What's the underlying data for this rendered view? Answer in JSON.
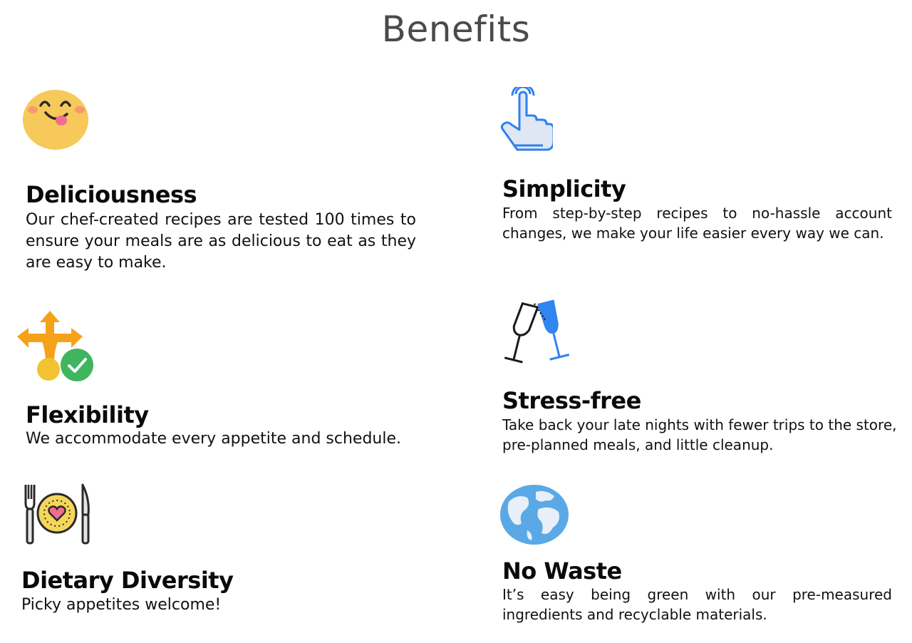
{
  "page": {
    "title": "Benefits"
  },
  "benefits": [
    {
      "title": "Deliciousness",
      "description": "Our chef-created recipes are tested 100 times to ensure your meals are as delicious to eat as they are easy to make.",
      "icon": "smiling-face-icon"
    },
    {
      "title": "Simplicity",
      "description": "From step-by-step recipes to no-hassle account changes, we make your life easier every way we can.",
      "icon": "tap-hand-icon"
    },
    {
      "title": "Flexibility",
      "description": "We accommodate every appetite and schedule.",
      "icon": "branching-arrows-check-icon"
    },
    {
      "title": "Stress-free",
      "description": "Take back your late nights with fewer trips to the store, pre-planned meals, and little cleanup.",
      "icon": "wine-glasses-icon"
    },
    {
      "title": "Dietary Diversity",
      "description": "Picky appetites welcome!",
      "icon": "plate-cutlery-icon"
    },
    {
      "title": "No Waste",
      "description": "It’s easy being green with our pre-measured ingredients and recyclable materials.",
      "icon": "globe-icon"
    }
  ],
  "colors": {
    "title_gray": "#4a4a4a",
    "emoji_yellow": "#f7c85a",
    "hand_blue": "#2f80ed",
    "arrow_orange": "#f5a21b",
    "check_green": "#3fb55e",
    "globe_blue": "#5aa9e6",
    "plate_yellow": "#f6d65a",
    "heart_pink": "#f26d8f"
  }
}
